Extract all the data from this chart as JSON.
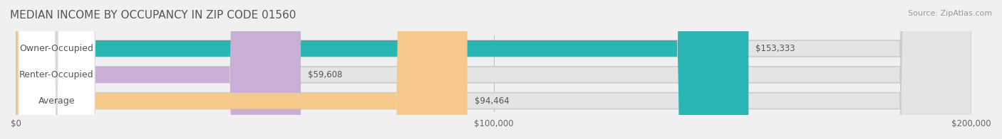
{
  "title": "MEDIAN INCOME BY OCCUPANCY IN ZIP CODE 01560",
  "source": "Source: ZipAtlas.com",
  "categories": [
    "Owner-Occupied",
    "Renter-Occupied",
    "Average"
  ],
  "values": [
    153333,
    59608,
    94464
  ],
  "bar_colors": [
    "#2ab5b5",
    "#c9aed6",
    "#f5c98a"
  ],
  "bar_edge_colors": [
    "#2ab5b5",
    "#c9aed6",
    "#f5c98a"
  ],
  "value_labels": [
    "$153,333",
    "$59,608",
    "$94,464"
  ],
  "xlim": [
    0,
    200000
  ],
  "xticks": [
    0,
    100000,
    200000
  ],
  "xtick_labels": [
    "$0",
    "$100,000",
    "$200,000"
  ],
  "background_color": "#f0f0f0",
  "bar_bg_color": "#e8e8e8",
  "title_fontsize": 11,
  "label_fontsize": 9,
  "source_fontsize": 8
}
